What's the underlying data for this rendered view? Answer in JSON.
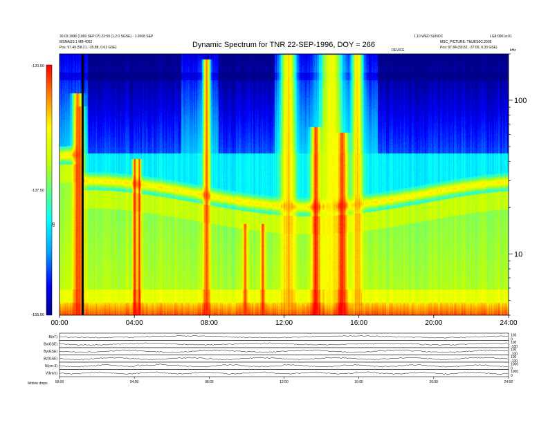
{
  "header": {
    "left_line1": "30.03.1996 (1999 SEP 07) 22:59 (1.2.0 SGSE) - 1:2008 SEP",
    "left_line2": "MSMASS 1 MB 4002",
    "left_pos": "Pos:   97.49 (58.21, -35.88, 0.61 GSE)",
    "right_line1": "1.10 WED SUNOC",
    "right_line1b": "LG8:0001a:01",
    "right_line2": "MSC_PICTURE: TNUES0C.2005",
    "right_pos": "Pos:   97.84 (59.82, -37.00, 0.33 GSE)",
    "small_mid": "DEVICE",
    "freq_unit": "kHz"
  },
  "chart_data": {
    "type": "heatmap",
    "title": "Dynamic Spectrum for TNR 22-SEP-1996, DOY = 266",
    "x_ticks": [
      "00:00",
      "04:00",
      "08:00",
      "12:00",
      "16:00",
      "20:00",
      "24:00"
    ],
    "x_range_hours": [
      0,
      24
    ],
    "y_scale": "log",
    "y_ticks": [
      10,
      100
    ],
    "y_range_khz": [
      4,
      200
    ],
    "colorbar": {
      "ticks": [
        "-120.00",
        "-137.50",
        "-155.00"
      ],
      "range": [
        -155.0,
        -120.0
      ],
      "label": "dB",
      "colors": [
        "#00008a",
        "#0000ff",
        "#00a0ff",
        "#00ffff",
        "#60ff80",
        "#c8ff00",
        "#ffff00",
        "#ff8000",
        "#ff0000"
      ]
    },
    "panels": [
      {
        "label": "B(nT)",
        "right_ticks": [
          "100",
          "0"
        ]
      },
      {
        "label": "Bx(GSE)",
        "right_ticks": [
          "100",
          "-100"
        ]
      },
      {
        "label": "By(GSE)",
        "right_ticks": [
          "100",
          "-100"
        ]
      },
      {
        "label": "Bz(GSE)",
        "right_ticks": [
          "100",
          "-100"
        ]
      },
      {
        "label": "N(cm-3)",
        "right_ticks": [
          "1000",
          "0"
        ]
      },
      {
        "label": "V(km/s)",
        "right_ticks": [
          "1000",
          "0"
        ]
      }
    ],
    "bottom_ticks": [
      "00:00",
      "04:00",
      "08:00",
      "12:00",
      "16:00",
      "20:00",
      "24:00"
    ],
    "bottom_label": "Motion   dmps"
  }
}
